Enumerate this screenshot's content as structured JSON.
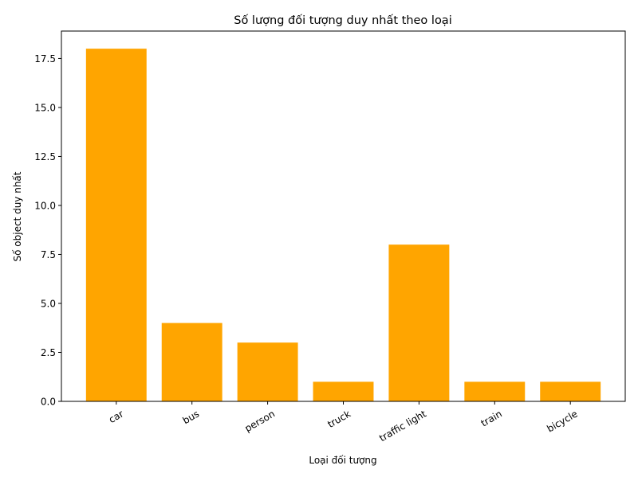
{
  "chart_data": {
    "type": "bar",
    "title": "Số lượng đối tượng duy nhất theo loại",
    "xlabel": "Loại đối tượng",
    "ylabel": "Số object duy nhất",
    "categories": [
      "car",
      "bus",
      "person",
      "truck",
      "traffic light",
      "train",
      "bicycle"
    ],
    "values": [
      18,
      4,
      3,
      1,
      8,
      1,
      1
    ],
    "ylim": [
      0,
      18.9
    ],
    "yticks": [
      0.0,
      2.5,
      5.0,
      7.5,
      10.0,
      12.5,
      15.0,
      17.5
    ],
    "ytick_labels": [
      "0.0",
      "2.5",
      "5.0",
      "7.5",
      "10.0",
      "12.5",
      "15.0",
      "17.5"
    ],
    "bar_color": "#ffa500",
    "grid": false,
    "legend": false
  }
}
